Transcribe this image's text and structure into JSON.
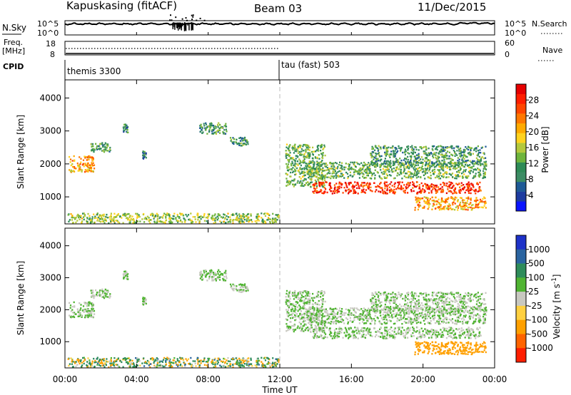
{
  "header": {
    "station": "Kapuskasing (fitACF)",
    "beam": "Beam 03",
    "date": "11/Dec/2015"
  },
  "top_panels": {
    "nsky_label": "N.Sky",
    "nsky_ticks": [
      "10^5",
      "10^0"
    ],
    "nsky_right_ticks": [
      "10^5",
      "10^0"
    ],
    "nsearch_label": "N.Search",
    "freq_label": "Freq.",
    "freq_unit": "[MHz]",
    "freq_ticks": [
      "18",
      "8"
    ],
    "nave_ticks": [
      "60",
      "0"
    ],
    "nave_label": "Nave",
    "cpid_label": "CPID",
    "cpid_segments": [
      {
        "start_hour": 0,
        "name": "themis 3300"
      },
      {
        "start_hour": 12,
        "name": "tau (fast) 503"
      }
    ]
  },
  "power_colorbar": {
    "label": "Power [dB]",
    "ticks": [
      "4",
      "8",
      "12",
      "16",
      "20",
      "24",
      "28"
    ],
    "colors": [
      "#0a14ff",
      "#1e3ca0",
      "#1e5a96",
      "#3c8c64",
      "#2e8b57",
      "#6eb43c",
      "#b4c83c",
      "#ffd21e",
      "#ffaa00",
      "#ff7800",
      "#ff4600",
      "#ff1e00",
      "#e60000"
    ]
  },
  "velocity_colorbar": {
    "label": "Velocity [m s",
    "label_exp": "-1",
    "label_end": "]",
    "ticks": [
      "1000",
      "500",
      "100",
      "25",
      "-25",
      "-100",
      "-500",
      "-1000"
    ],
    "colors": [
      "#1e32c8",
      "#2a64a0",
      "#2e8c5a",
      "#50b432",
      "#c8c8c0",
      "#ffd040",
      "#ffa000",
      "#ff6400",
      "#ff1e00"
    ]
  },
  "axes": {
    "ylabel": "Slant Range [km]",
    "yticks": [
      "1000",
      "2000",
      "3000",
      "4000"
    ],
    "xticks": [
      "00:00",
      "04:00",
      "08:00",
      "12:00",
      "16:00",
      "20:00",
      "00:00"
    ],
    "xlabel": "Time UT"
  },
  "chart_data": {
    "type": "heatmap",
    "x_range_hours": [
      0,
      24
    ],
    "y_range_km": [
      180,
      4550
    ],
    "yticks_km": [
      1000,
      2000,
      3000,
      4000
    ],
    "xticks_hours": [
      0,
      4,
      8,
      12,
      16,
      20,
      24
    ],
    "mode_change_hour": 12,
    "power_range_db": [
      0,
      30
    ],
    "velocity_range_ms": [
      -1200,
      1200
    ],
    "echo_regions": [
      {
        "t": [
          0.2,
          1.6
        ],
        "r": [
          1750,
          2250
        ],
        "power": 20,
        "velocity": 25
      },
      {
        "t": [
          1.4,
          2.5
        ],
        "r": [
          2350,
          2650
        ],
        "power": 10,
        "velocity": 25
      },
      {
        "t": [
          3.2,
          3.5
        ],
        "r": [
          2950,
          3200
        ],
        "power": 8,
        "velocity": 25
      },
      {
        "t": [
          4.3,
          4.5
        ],
        "r": [
          2150,
          2400
        ],
        "power": 8,
        "velocity": 25
      },
      {
        "t": [
          7.5,
          9.0
        ],
        "r": [
          2900,
          3250
        ],
        "power": 10,
        "velocity": 25
      },
      {
        "t": [
          9.2,
          10.2
        ],
        "r": [
          2550,
          2800
        ],
        "power": 10,
        "velocity": 25
      },
      {
        "t": [
          0.1,
          12.0
        ],
        "r": [
          200,
          500
        ],
        "power": 14,
        "velocity": 100
      },
      {
        "t": [
          12.3,
          14.5
        ],
        "r": [
          1300,
          2600
        ],
        "power": 12,
        "velocity": 25
      },
      {
        "t": [
          13.5,
          23.5
        ],
        "r": [
          1550,
          2050
        ],
        "power": 12,
        "velocity": 25
      },
      {
        "t": [
          13.8,
          23.2
        ],
        "r": [
          1100,
          1450
        ],
        "power": 26,
        "velocity": 25
      },
      {
        "t": [
          17.0,
          23.5
        ],
        "r": [
          1950,
          2550
        ],
        "power": 10,
        "velocity": 25
      },
      {
        "t": [
          19.5,
          23.5
        ],
        "r": [
          600,
          1000
        ],
        "power": 20,
        "velocity": -150
      }
    ]
  }
}
